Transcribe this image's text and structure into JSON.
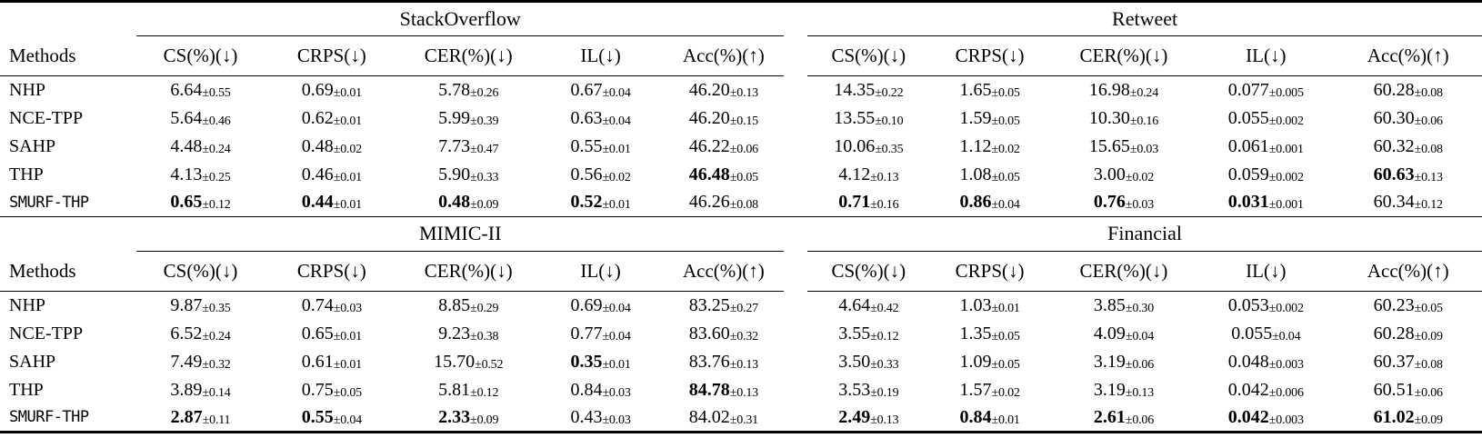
{
  "page": {
    "background_color": "#ffffff",
    "text_color": "#000000"
  },
  "table": {
    "plusminus": "±",
    "methods_header": "Methods",
    "metric_headers": [
      "CS(%)(↓)",
      "CRPS(↓)",
      "CER(%)(↓)",
      "IL(↓)",
      "Acc(%)(↑)"
    ],
    "methods": [
      {
        "label": "NHP",
        "mono": false
      },
      {
        "label": "NCE-TPP",
        "mono": false
      },
      {
        "label": "SAHP",
        "mono": false
      },
      {
        "label": "THP",
        "mono": false
      },
      {
        "label": "SMURF-THP",
        "mono": true
      }
    ],
    "sections": [
      {
        "datasets": [
          {
            "name": "StackOverflow",
            "rows": [
              [
                [
                  "6.64",
                  "0.55",
                  0
                ],
                [
                  "0.69",
                  "0.01",
                  0
                ],
                [
                  "5.78",
                  "0.26",
                  0
                ],
                [
                  "0.67",
                  "0.04",
                  0
                ],
                [
                  "46.20",
                  "0.13",
                  0
                ]
              ],
              [
                [
                  "5.64",
                  "0.46",
                  0
                ],
                [
                  "0.62",
                  "0.01",
                  0
                ],
                [
                  "5.99",
                  "0.39",
                  0
                ],
                [
                  "0.63",
                  "0.04",
                  0
                ],
                [
                  "46.20",
                  "0.15",
                  0
                ]
              ],
              [
                [
                  "4.48",
                  "0.24",
                  0
                ],
                [
                  "0.48",
                  "0.02",
                  0
                ],
                [
                  "7.73",
                  "0.47",
                  0
                ],
                [
                  "0.55",
                  "0.01",
                  0
                ],
                [
                  "46.22",
                  "0.06",
                  0
                ]
              ],
              [
                [
                  "4.13",
                  "0.25",
                  0
                ],
                [
                  "0.46",
                  "0.01",
                  0
                ],
                [
                  "5.90",
                  "0.33",
                  0
                ],
                [
                  "0.56",
                  "0.02",
                  0
                ],
                [
                  "46.48",
                  "0.05",
                  1
                ]
              ],
              [
                [
                  "0.65",
                  "0.12",
                  1
                ],
                [
                  "0.44",
                  "0.01",
                  1
                ],
                [
                  "0.48",
                  "0.09",
                  1
                ],
                [
                  "0.52",
                  "0.01",
                  1
                ],
                [
                  "46.26",
                  "0.08",
                  0
                ]
              ]
            ]
          },
          {
            "name": "Retweet",
            "rows": [
              [
                [
                  "14.35",
                  "0.22",
                  0
                ],
                [
                  "1.65",
                  "0.05",
                  0
                ],
                [
                  "16.98",
                  "0.24",
                  0
                ],
                [
                  "0.077",
                  "0.005",
                  0
                ],
                [
                  "60.28",
                  "0.08",
                  0
                ]
              ],
              [
                [
                  "13.55",
                  "0.10",
                  0
                ],
                [
                  "1.59",
                  "0.05",
                  0
                ],
                [
                  "10.30",
                  "0.16",
                  0
                ],
                [
                  "0.055",
                  "0.002",
                  0
                ],
                [
                  "60.30",
                  "0.06",
                  0
                ]
              ],
              [
                [
                  "10.06",
                  "0.35",
                  0
                ],
                [
                  "1.12",
                  "0.02",
                  0
                ],
                [
                  "15.65",
                  "0.03",
                  0
                ],
                [
                  "0.061",
                  "0.001",
                  0
                ],
                [
                  "60.32",
                  "0.08",
                  0
                ]
              ],
              [
                [
                  "4.12",
                  "0.13",
                  0
                ],
                [
                  "1.08",
                  "0.05",
                  0
                ],
                [
                  "3.00",
                  "0.02",
                  0
                ],
                [
                  "0.059",
                  "0.002",
                  0
                ],
                [
                  "60.63",
                  "0.13",
                  1
                ]
              ],
              [
                [
                  "0.71",
                  "0.16",
                  1
                ],
                [
                  "0.86",
                  "0.04",
                  1
                ],
                [
                  "0.76",
                  "0.03",
                  1
                ],
                [
                  "0.031",
                  "0.001",
                  1
                ],
                [
                  "60.34",
                  "0.12",
                  0
                ]
              ]
            ]
          }
        ]
      },
      {
        "datasets": [
          {
            "name": "MIMIC-II",
            "rows": [
              [
                [
                  "9.87",
                  "0.35",
                  0
                ],
                [
                  "0.74",
                  "0.03",
                  0
                ],
                [
                  "8.85",
                  "0.29",
                  0
                ],
                [
                  "0.69",
                  "0.04",
                  0
                ],
                [
                  "83.25",
                  "0.27",
                  0
                ]
              ],
              [
                [
                  "6.52",
                  "0.24",
                  0
                ],
                [
                  "0.65",
                  "0.01",
                  0
                ],
                [
                  "9.23",
                  "0.38",
                  0
                ],
                [
                  "0.77",
                  "0.04",
                  0
                ],
                [
                  "83.60",
                  "0.32",
                  0
                ]
              ],
              [
                [
                  "7.49",
                  "0.32",
                  0
                ],
                [
                  "0.61",
                  "0.01",
                  0
                ],
                [
                  "15.70",
                  "0.52",
                  0
                ],
                [
                  "0.35",
                  "0.01",
                  1
                ],
                [
                  "83.76",
                  "0.13",
                  0
                ]
              ],
              [
                [
                  "3.89",
                  "0.14",
                  0
                ],
                [
                  "0.75",
                  "0.05",
                  0
                ],
                [
                  "5.81",
                  "0.12",
                  0
                ],
                [
                  "0.84",
                  "0.03",
                  0
                ],
                [
                  "84.78",
                  "0.13",
                  1
                ]
              ],
              [
                [
                  "2.87",
                  "0.11",
                  1
                ],
                [
                  "0.55",
                  "0.04",
                  1
                ],
                [
                  "2.33",
                  "0.09",
                  1
                ],
                [
                  "0.43",
                  "0.03",
                  0
                ],
                [
                  "84.02",
                  "0.31",
                  0
                ]
              ]
            ]
          },
          {
            "name": "Financial",
            "rows": [
              [
                [
                  "4.64",
                  "0.42",
                  0
                ],
                [
                  "1.03",
                  "0.01",
                  0
                ],
                [
                  "3.85",
                  "0.30",
                  0
                ],
                [
                  "0.053",
                  "0.002",
                  0
                ],
                [
                  "60.23",
                  "0.05",
                  0
                ]
              ],
              [
                [
                  "3.55",
                  "0.12",
                  0
                ],
                [
                  "1.35",
                  "0.05",
                  0
                ],
                [
                  "4.09",
                  "0.04",
                  0
                ],
                [
                  "0.055",
                  "0.04",
                  0
                ],
                [
                  "60.28",
                  "0.09",
                  0
                ]
              ],
              [
                [
                  "3.50",
                  "0.33",
                  0
                ],
                [
                  "1.09",
                  "0.05",
                  0
                ],
                [
                  "3.19",
                  "0.06",
                  0
                ],
                [
                  "0.048",
                  "0.003",
                  0
                ],
                [
                  "60.37",
                  "0.08",
                  0
                ]
              ],
              [
                [
                  "3.53",
                  "0.19",
                  0
                ],
                [
                  "1.57",
                  "0.02",
                  0
                ],
                [
                  "3.19",
                  "0.13",
                  0
                ],
                [
                  "0.042",
                  "0.006",
                  0
                ],
                [
                  "60.51",
                  "0.06",
                  0
                ]
              ],
              [
                [
                  "2.49",
                  "0.13",
                  1
                ],
                [
                  "0.84",
                  "0.01",
                  1
                ],
                [
                  "2.61",
                  "0.06",
                  1
                ],
                [
                  "0.042",
                  "0.003",
                  1
                ],
                [
                  "61.02",
                  "0.09",
                  1
                ]
              ]
            ]
          }
        ]
      }
    ]
  }
}
